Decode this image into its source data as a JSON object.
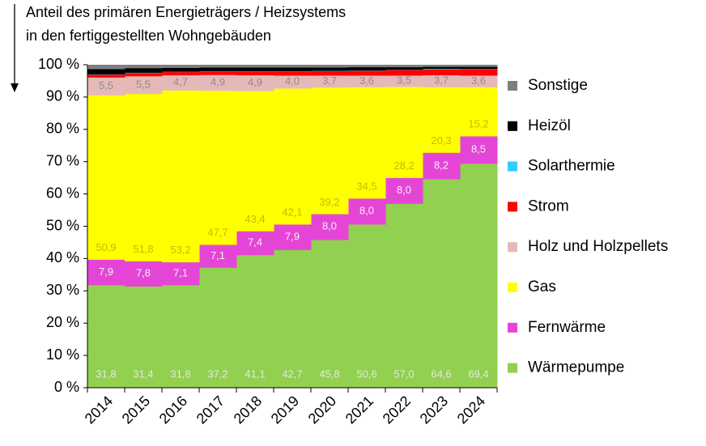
{
  "chart_data": {
    "type": "stacked-step-bar",
    "ylabel": [
      "Anteil des primären Energieträgers  / Heizsystems",
      "in den fertiggestellten  Wohngebäuden"
    ],
    "categories": [
      "2014",
      "2015",
      "2016",
      "2017",
      "2018",
      "2019",
      "2020",
      "2021",
      "2022",
      "2023",
      "2024"
    ],
    "ylim": [
      0,
      100
    ],
    "yticks": [
      {
        "value": 0,
        "label": "0 %"
      },
      {
        "value": 10,
        "label": "10 %"
      },
      {
        "value": 20,
        "label": "20 %"
      },
      {
        "value": 30,
        "label": "30 %"
      },
      {
        "value": 40,
        "label": "40 %"
      },
      {
        "value": 50,
        "label": "50 %"
      },
      {
        "value": 60,
        "label": "60 %"
      },
      {
        "value": 70,
        "label": "70 %"
      },
      {
        "value": 80,
        "label": "80 %"
      },
      {
        "value": 90,
        "label": "90 %"
      },
      {
        "value": 100,
        "label": "100 %"
      }
    ],
    "grid": false,
    "legend": "right",
    "series": [
      {
        "name": "Wärmepumpe",
        "color": "#92d050",
        "values": [
          31.8,
          31.4,
          31.8,
          37.2,
          41.1,
          42.7,
          45.8,
          50.6,
          57.0,
          64.6,
          69.4
        ],
        "value_labels": [
          "31,8",
          "31,4",
          "31,8",
          "37,2",
          "41,1",
          "42,7",
          "45,8",
          "50,6",
          "57,0",
          "64,6",
          "69,4"
        ]
      },
      {
        "name": "Fernwärme",
        "color": "#e545d6",
        "values": [
          7.9,
          7.8,
          7.1,
          7.1,
          7.4,
          7.9,
          8.0,
          8.0,
          8.0,
          8.2,
          8.5
        ],
        "value_labels": [
          "7,9",
          "7,8",
          "7,1",
          "7,1",
          "7,4",
          "7,9",
          "8,0",
          "8,0",
          "8,0",
          "8,2",
          "8,5"
        ]
      },
      {
        "name": "Gas",
        "color": "#ffff00",
        "values": [
          50.9,
          51.8,
          53.2,
          47.7,
          43.4,
          42.1,
          39.2,
          34.5,
          28.2,
          20.3,
          15.2
        ],
        "value_labels": [
          "50,9",
          "51,8",
          "53,2",
          "47,7",
          "43,4",
          "42,1",
          "39,2",
          "34,5",
          "28,2",
          "20,3",
          "15,2"
        ]
      },
      {
        "name": "Holz und Holzpellets",
        "color": "#e6b9b8",
        "values": [
          5.5,
          5.5,
          4.7,
          4.9,
          4.9,
          4.0,
          3.7,
          3.6,
          3.5,
          3.7,
          3.6
        ],
        "value_labels": [
          "5,5",
          "5,5",
          "4,7",
          "4,9",
          "4,9",
          "4,0",
          "3,7",
          "3,6",
          "3,5",
          "3,7",
          "3,6"
        ]
      },
      {
        "name": "Strom",
        "color": "#ff0000",
        "values": [
          0.9,
          1.0,
          1.0,
          1.1,
          1.2,
          1.3,
          1.4,
          1.5,
          1.7,
          1.8,
          2.0
        ]
      },
      {
        "name": "Solarthermie",
        "color": "#33ccff",
        "values": [
          0.1,
          0.1,
          0.1,
          0.1,
          0.1,
          0.1,
          0.1,
          0.1,
          0.1,
          0.2,
          0.1
        ]
      },
      {
        "name": "Heizöl",
        "color": "#000000",
        "values": [
          1.6,
          1.4,
          1.2,
          1.1,
          1.1,
          1.1,
          1.0,
          1.0,
          0.8,
          0.6,
          0.6
        ]
      },
      {
        "name": "Sonstige",
        "color": "#7f7f7f",
        "values": [
          1.3,
          1.0,
          0.9,
          0.8,
          0.8,
          0.8,
          0.8,
          0.7,
          0.7,
          0.6,
          0.6
        ]
      }
    ]
  }
}
